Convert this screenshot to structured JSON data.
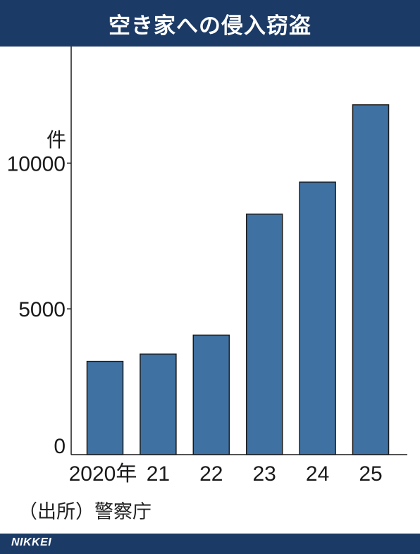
{
  "header": {
    "title": "空き家への侵入窃盗"
  },
  "chart_data": {
    "type": "bar",
    "title": "空き家への侵入窃盗",
    "ylabel": "件",
    "xlabel": "",
    "categories": [
      "2020年",
      "21",
      "22",
      "23",
      "24",
      "25"
    ],
    "values": [
      3200,
      3450,
      4100,
      8250,
      9350,
      12000
    ],
    "ylim": [
      0,
      14000
    ],
    "yticks": [
      0,
      5000,
      10000
    ],
    "grid": false,
    "bar_color": "#3f72a3"
  },
  "source": {
    "text": "（出所）警察庁"
  },
  "footer": {
    "logo": "NIKKEI"
  },
  "colors": {
    "header_bg": "#1b3a66",
    "bar": "#3f72a3",
    "bar_outline": "#1a1a1a"
  }
}
